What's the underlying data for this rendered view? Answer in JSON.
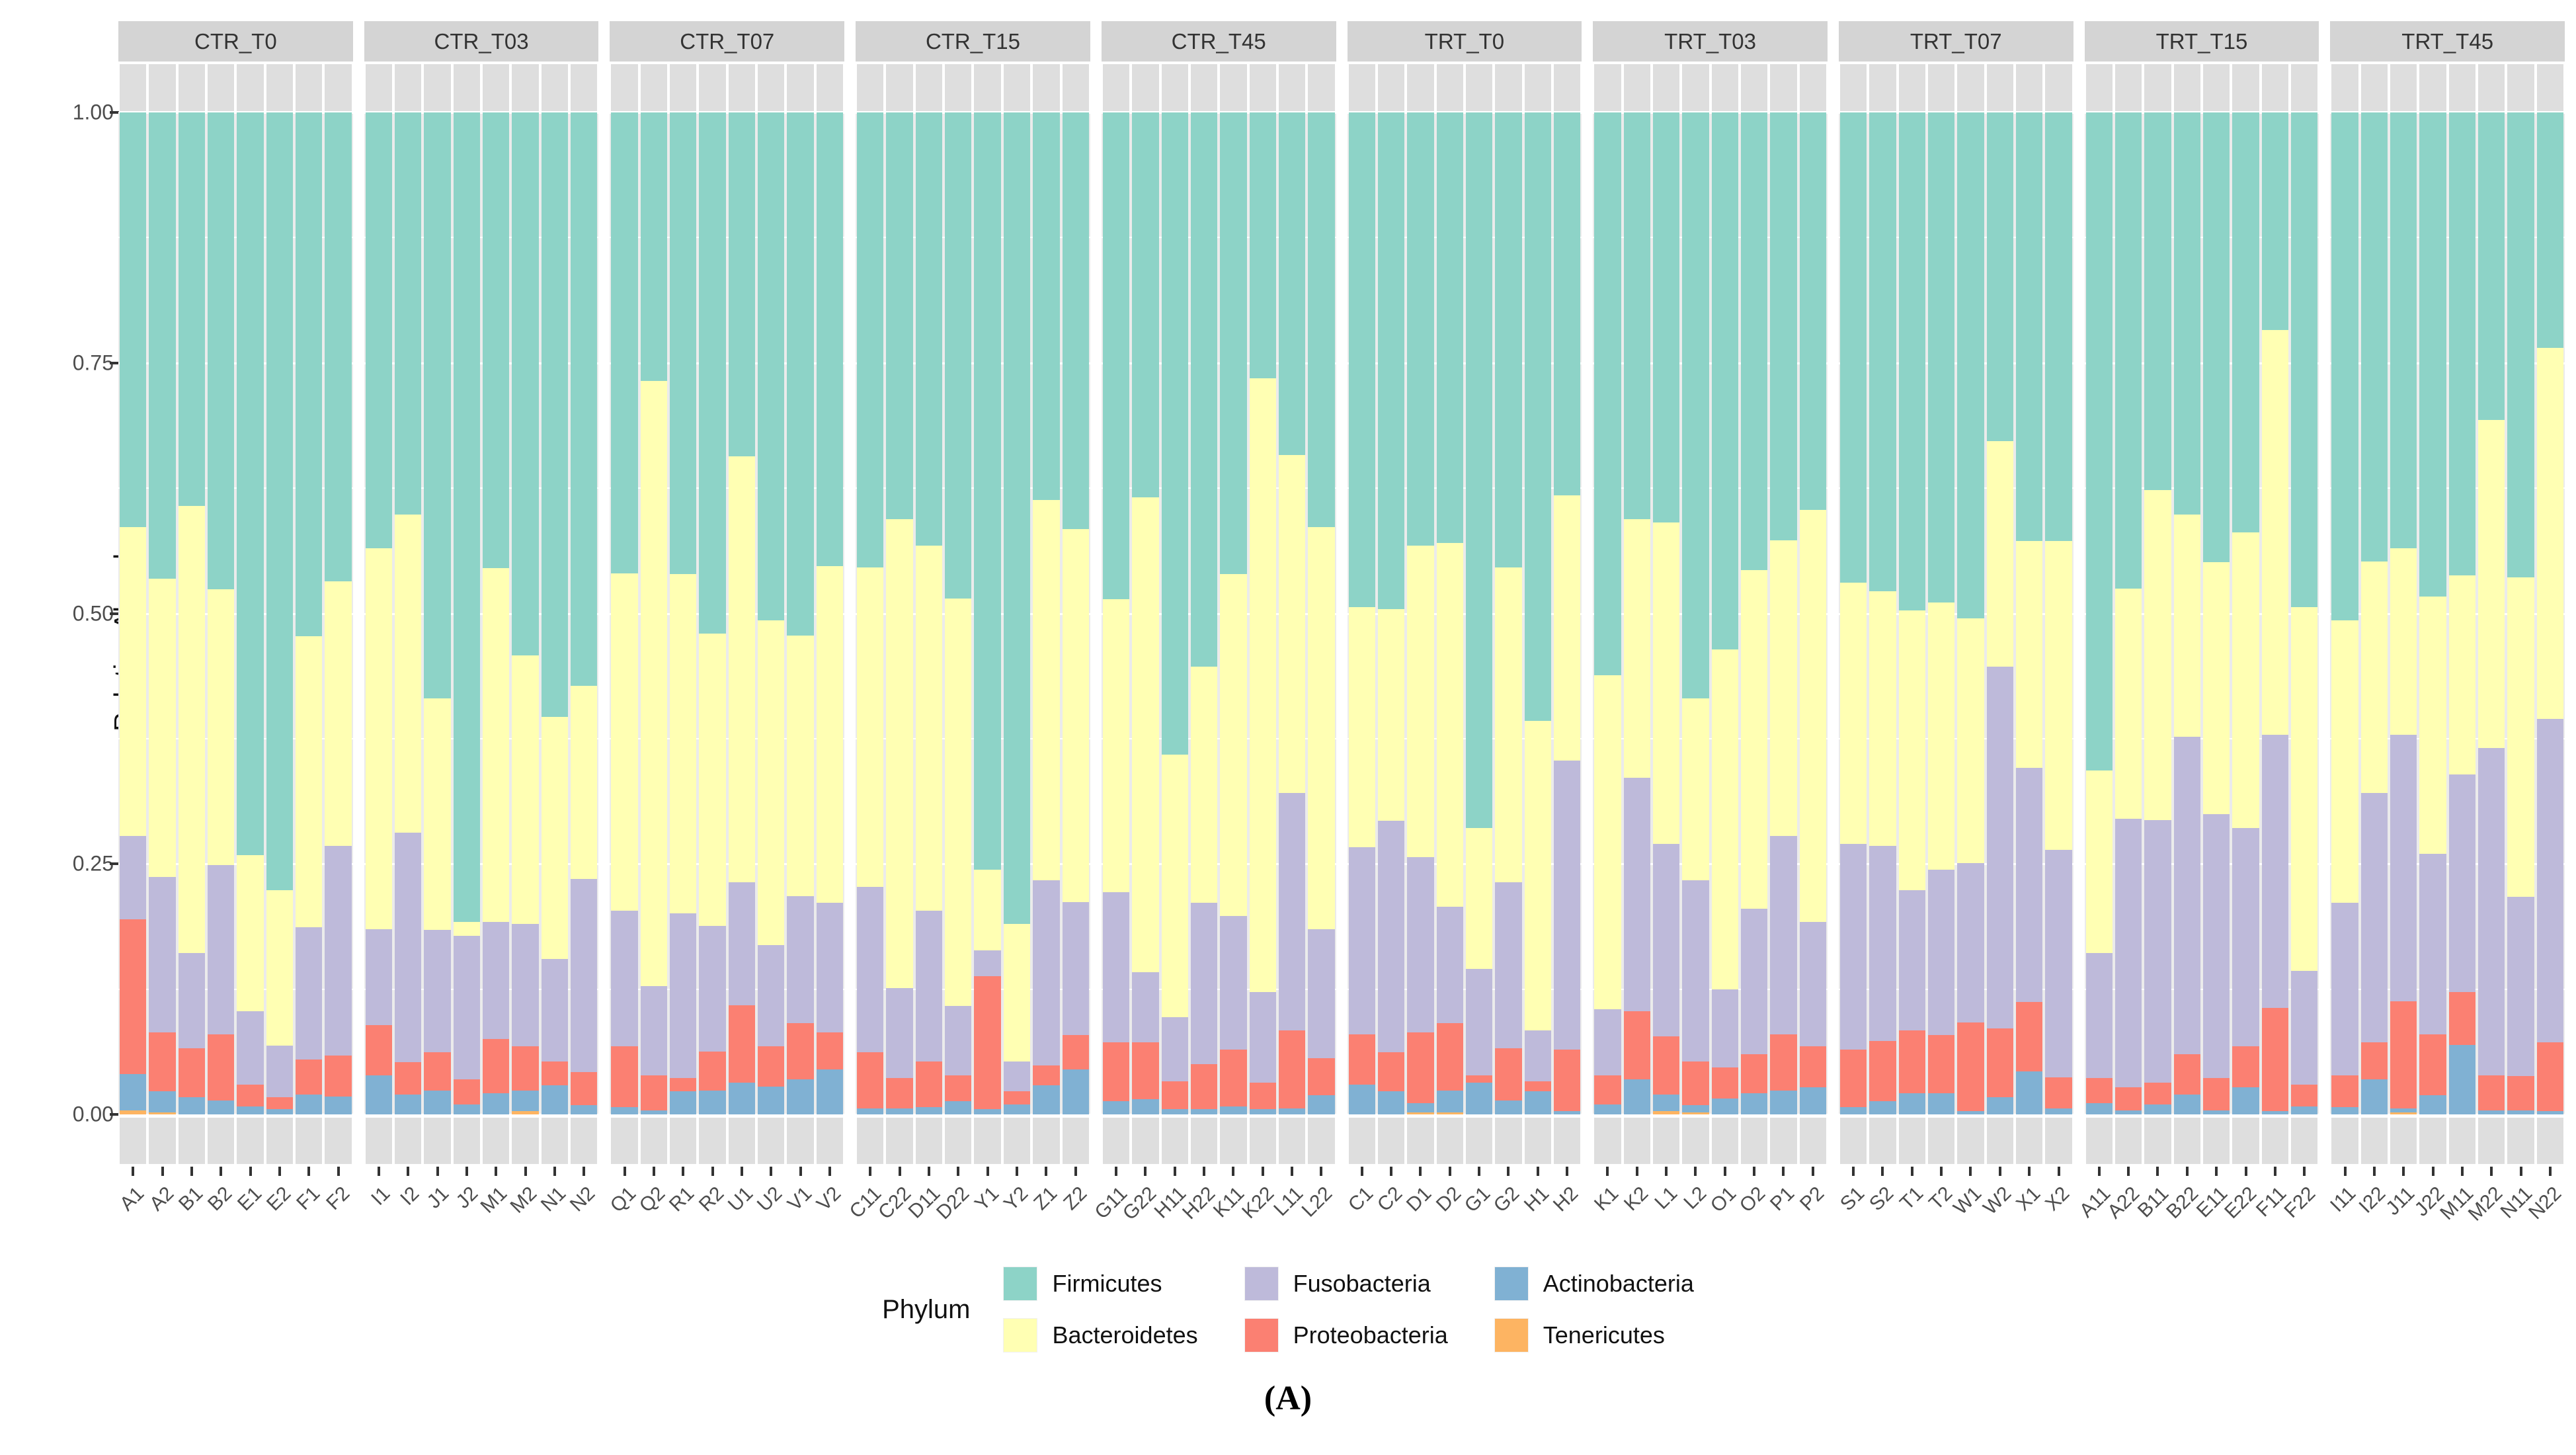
{
  "y_axis": {
    "title": "Relative Abundance",
    "ticks": [
      "1.00",
      "0.75",
      "0.50",
      "0.25",
      "0.00"
    ],
    "tick_values": [
      1.0,
      0.75,
      0.5,
      0.25,
      0.0
    ]
  },
  "legend": {
    "title": "Phylum",
    "entries": [
      {
        "label": "Firmicutes",
        "color": "#8dd3c7"
      },
      {
        "label": "Fusobacteria",
        "color": "#bebada"
      },
      {
        "label": "Actinobacteria",
        "color": "#80b1d3"
      },
      {
        "label": "Bacteroidetes",
        "color": "#ffffb3"
      },
      {
        "label": "Proteobacteria",
        "color": "#fb8072"
      },
      {
        "label": "Tenericutes",
        "color": "#fdb462"
      }
    ]
  },
  "caption": "(A)",
  "chart_data": {
    "type": "bar",
    "subtype": "stacked-relative-abundance",
    "ylabel": "Relative Abundance",
    "ylim": [
      0,
      1
    ],
    "grid": true,
    "legend_position": "bottom",
    "stack_order": [
      "Tenericutes",
      "Actinobacteria",
      "Proteobacteria",
      "Fusobacteria",
      "Bacteroidetes",
      "Firmicutes"
    ],
    "colors": {
      "Firmicutes": "#8dd3c7",
      "Bacteroidetes": "#ffffb3",
      "Fusobacteria": "#bebada",
      "Proteobacteria": "#fb8072",
      "Actinobacteria": "#80b1d3",
      "Tenericutes": "#fdb462"
    },
    "facets": [
      {
        "label": "CTR_T0",
        "samples": [
          {
            "label": "A1",
            "values": [
              0.004,
              0.036,
              0.155,
              0.083,
              0.308,
              0.414
            ]
          },
          {
            "label": "A2",
            "values": [
              0.002,
              0.021,
              0.059,
              0.155,
              0.298,
              0.465
            ]
          },
          {
            "label": "B1",
            "values": [
              0,
              0.017,
              0.049,
              0.095,
              0.446,
              0.393
            ]
          },
          {
            "label": "B2",
            "values": [
              0,
              0.014,
              0.066,
              0.169,
              0.275,
              0.476
            ]
          },
          {
            "label": "E1",
            "values": [
              0,
              0.008,
              0.022,
              0.073,
              0.156,
              0.741
            ]
          },
          {
            "label": "E2",
            "values": [
              0,
              0.005,
              0.012,
              0.052,
              0.155,
              0.776
            ]
          },
          {
            "label": "F1",
            "values": [
              0,
              0.02,
              0.035,
              0.132,
              0.29,
              0.523
            ]
          },
          {
            "label": "F2",
            "values": [
              0,
              0.018,
              0.041,
              0.209,
              0.264,
              0.468
            ]
          }
        ]
      },
      {
        "label": "CTR_T03",
        "samples": [
          {
            "label": "I1",
            "values": [
              0,
              0.039,
              0.05,
              0.096,
              0.38,
              0.435
            ]
          },
          {
            "label": "I2",
            "values": [
              0,
              0.02,
              0.032,
              0.229,
              0.318,
              0.401
            ]
          },
          {
            "label": "J1",
            "values": [
              0,
              0.024,
              0.038,
              0.122,
              0.231,
              0.585
            ]
          },
          {
            "label": "J2",
            "values": [
              0,
              0.01,
              0.025,
              0.143,
              0.014,
              0.808
            ]
          },
          {
            "label": "M1",
            "values": [
              0,
              0.021,
              0.054,
              0.117,
              0.353,
              0.455
            ]
          },
          {
            "label": "M2",
            "values": [
              0.003,
              0.021,
              0.044,
              0.122,
              0.268,
              0.542
            ]
          },
          {
            "label": "N1",
            "values": [
              0,
              0.029,
              0.024,
              0.102,
              0.242,
              0.603
            ]
          },
          {
            "label": "N2",
            "values": [
              0,
              0.009,
              0.033,
              0.193,
              0.193,
              0.572
            ]
          }
        ]
      },
      {
        "label": "CTR_T07",
        "samples": [
          {
            "label": "Q1",
            "values": [
              0,
              0.007,
              0.061,
              0.135,
              0.337,
              0.46
            ]
          },
          {
            "label": "Q2",
            "values": [
              0,
              0.004,
              0.035,
              0.089,
              0.604,
              0.268
            ]
          },
          {
            "label": "R1",
            "values": [
              0,
              0.023,
              0.013,
              0.165,
              0.338,
              0.461
            ]
          },
          {
            "label": "R2",
            "values": [
              0,
              0.024,
              0.039,
              0.125,
              0.292,
              0.52
            ]
          },
          {
            "label": "U1",
            "values": [
              0,
              0.032,
              0.077,
              0.123,
              0.425,
              0.343
            ]
          },
          {
            "label": "U2",
            "values": [
              0,
              0.028,
              0.04,
              0.101,
              0.324,
              0.507
            ]
          },
          {
            "label": "V1",
            "values": [
              0,
              0.035,
              0.056,
              0.127,
              0.26,
              0.522
            ]
          },
          {
            "label": "V2",
            "values": [
              0,
              0.045,
              0.037,
              0.129,
              0.336,
              0.453
            ]
          }
        ]
      },
      {
        "label": "CTR_T15",
        "samples": [
          {
            "label": "C11",
            "values": [
              0,
              0.006,
              0.056,
              0.165,
              0.319,
              0.454
            ]
          },
          {
            "label": "C22",
            "values": [
              0,
              0.006,
              0.03,
              0.09,
              0.468,
              0.406
            ]
          },
          {
            "label": "D11",
            "values": [
              0,
              0.007,
              0.046,
              0.15,
              0.365,
              0.432
            ]
          },
          {
            "label": "D22",
            "values": [
              0,
              0.013,
              0.026,
              0.069,
              0.407,
              0.485
            ]
          },
          {
            "label": "Y1",
            "values": [
              0,
              0.005,
              0.133,
              0.026,
              0.08,
              0.756
            ]
          },
          {
            "label": "Y2",
            "values": [
              0,
              0.01,
              0.013,
              0.03,
              0.137,
              0.81
            ]
          },
          {
            "label": "Z1",
            "values": [
              0,
              0.029,
              0.02,
              0.185,
              0.379,
              0.387
            ]
          },
          {
            "label": "Z2",
            "values": [
              0,
              0.045,
              0.034,
              0.133,
              0.372,
              0.416
            ]
          }
        ]
      },
      {
        "label": "CTR_T45",
        "samples": [
          {
            "label": "G11",
            "values": [
              0,
              0.013,
              0.059,
              0.15,
              0.292,
              0.486
            ]
          },
          {
            "label": "G22",
            "values": [
              0,
              0.015,
              0.057,
              0.07,
              0.474,
              0.384
            ]
          },
          {
            "label": "H11",
            "values": [
              0,
              0.005,
              0.028,
              0.064,
              0.262,
              0.641
            ]
          },
          {
            "label": "H22",
            "values": [
              0,
              0.005,
              0.045,
              0.161,
              0.236,
              0.553
            ]
          },
          {
            "label": "K11",
            "values": [
              0,
              0.008,
              0.057,
              0.133,
              0.341,
              0.461
            ]
          },
          {
            "label": "K22",
            "values": [
              0,
              0.005,
              0.027,
              0.09,
              0.613,
              0.265
            ]
          },
          {
            "label": "L11",
            "values": [
              0,
              0.006,
              0.078,
              0.237,
              0.337,
              0.342
            ]
          },
          {
            "label": "L22",
            "values": [
              0,
              0.019,
              0.037,
              0.129,
              0.401,
              0.414
            ]
          }
        ]
      },
      {
        "label": "TRT_T0",
        "samples": [
          {
            "label": "C1",
            "values": [
              0,
              0.03,
              0.05,
              0.187,
              0.239,
              0.494
            ]
          },
          {
            "label": "C2",
            "values": [
              0,
              0.023,
              0.039,
              0.231,
              0.211,
              0.496
            ]
          },
          {
            "label": "D1",
            "values": [
              0.002,
              0.009,
              0.071,
              0.175,
              0.311,
              0.432
            ]
          },
          {
            "label": "D2",
            "values": [
              0.002,
              0.022,
              0.067,
              0.116,
              0.363,
              0.43
            ]
          },
          {
            "label": "G1",
            "values": [
              0,
              0.032,
              0.007,
              0.106,
              0.141,
              0.714
            ]
          },
          {
            "label": "G2",
            "values": [
              0,
              0.014,
              0.052,
              0.166,
              0.314,
              0.454
            ]
          },
          {
            "label": "H1",
            "values": [
              0,
              0.023,
              0.01,
              0.051,
              0.309,
              0.607
            ]
          },
          {
            "label": "H2",
            "values": [
              0,
              0.003,
              0.062,
              0.288,
              0.265,
              0.382
            ]
          }
        ]
      },
      {
        "label": "TRT_T03",
        "samples": [
          {
            "label": "K1",
            "values": [
              0,
              0.01,
              0.029,
              0.066,
              0.333,
              0.562
            ]
          },
          {
            "label": "K2",
            "values": [
              0,
              0.035,
              0.068,
              0.233,
              0.258,
              0.406
            ]
          },
          {
            "label": "L1",
            "values": [
              0.003,
              0.017,
              0.058,
              0.192,
              0.321,
              0.409
            ]
          },
          {
            "label": "L2",
            "values": [
              0.002,
              0.007,
              0.044,
              0.181,
              0.181,
              0.585
            ]
          },
          {
            "label": "O1",
            "values": [
              0,
              0.016,
              0.031,
              0.078,
              0.339,
              0.536
            ]
          },
          {
            "label": "O2",
            "values": [
              0,
              0.021,
              0.039,
              0.145,
              0.338,
              0.457
            ]
          },
          {
            "label": "P1",
            "values": [
              0,
              0.024,
              0.056,
              0.198,
              0.295,
              0.427
            ]
          },
          {
            "label": "P2",
            "values": [
              0,
              0.027,
              0.041,
              0.124,
              0.411,
              0.397
            ]
          }
        ]
      },
      {
        "label": "TRT_T07",
        "samples": [
          {
            "label": "S1",
            "values": [
              0,
              0.007,
              0.058,
              0.205,
              0.261,
              0.469
            ]
          },
          {
            "label": "S2",
            "values": [
              0,
              0.013,
              0.06,
              0.195,
              0.254,
              0.478
            ]
          },
          {
            "label": "T1",
            "values": [
              0,
              0.021,
              0.063,
              0.14,
              0.279,
              0.497
            ]
          },
          {
            "label": "T2",
            "values": [
              0,
              0.021,
              0.058,
              0.165,
              0.267,
              0.489
            ]
          },
          {
            "label": "W1",
            "values": [
              0,
              0.003,
              0.089,
              0.159,
              0.244,
              0.505
            ]
          },
          {
            "label": "W2",
            "values": [
              0,
              0.017,
              0.069,
              0.361,
              0.225,
              0.328
            ]
          },
          {
            "label": "X1",
            "values": [
              0,
              0.043,
              0.069,
              0.234,
              0.226,
              0.428
            ]
          },
          {
            "label": "X2",
            "values": [
              0,
              0.006,
              0.031,
              0.227,
              0.308,
              0.428
            ]
          }
        ]
      },
      {
        "label": "TRT_T15",
        "samples": [
          {
            "label": "A11",
            "values": [
              0,
              0.011,
              0.025,
              0.125,
              0.182,
              0.657
            ]
          },
          {
            "label": "A22",
            "values": [
              0,
              0.004,
              0.023,
              0.268,
              0.23,
              0.475
            ]
          },
          {
            "label": "B11",
            "values": [
              0,
              0.01,
              0.022,
              0.262,
              0.329,
              0.377
            ]
          },
          {
            "label": "B22",
            "values": [
              0,
              0.02,
              0.04,
              0.317,
              0.222,
              0.401
            ]
          },
          {
            "label": "E11",
            "values": [
              0,
              0.004,
              0.032,
              0.264,
              0.251,
              0.449
            ]
          },
          {
            "label": "E22",
            "values": [
              0,
              0.027,
              0.041,
              0.218,
              0.295,
              0.419
            ]
          },
          {
            "label": "F11",
            "values": [
              0,
              0.003,
              0.103,
              0.273,
              0.404,
              0.217
            ]
          },
          {
            "label": "F22",
            "values": [
              0,
              0.008,
              0.022,
              0.113,
              0.363,
              0.494
            ]
          }
        ]
      },
      {
        "label": "TRT_T45",
        "samples": [
          {
            "label": "I11",
            "values": [
              0,
              0.007,
              0.032,
              0.172,
              0.282,
              0.507
            ]
          },
          {
            "label": "I22",
            "values": [
              0,
              0.035,
              0.037,
              0.249,
              0.231,
              0.448
            ]
          },
          {
            "label": "J11",
            "values": [
              0.002,
              0.004,
              0.107,
              0.266,
              0.186,
              0.435
            ]
          },
          {
            "label": "J22",
            "values": [
              0,
              0.019,
              0.061,
              0.18,
              0.257,
              0.483
            ]
          },
          {
            "label": "M11",
            "values": [
              0,
              0.069,
              0.053,
              0.217,
              0.199,
              0.462
            ]
          },
          {
            "label": "M22",
            "values": [
              0,
              0.004,
              0.035,
              0.327,
              0.327,
              0.307
            ]
          },
          {
            "label": "N11",
            "values": [
              0,
              0.004,
              0.034,
              0.179,
              0.319,
              0.464
            ]
          },
          {
            "label": "N22",
            "values": [
              0,
              0.003,
              0.069,
              0.323,
              0.37,
              0.235
            ]
          }
        ]
      }
    ]
  }
}
